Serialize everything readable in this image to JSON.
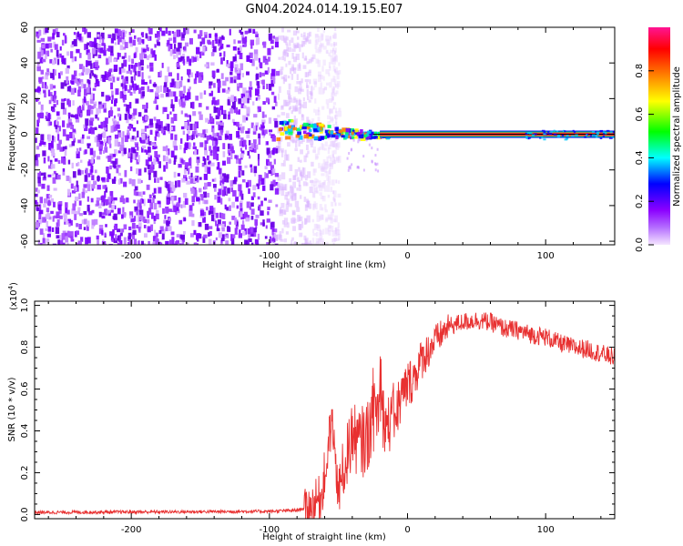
{
  "chart_data": [
    {
      "type": "heatmap",
      "title": "GN04.2024.014.19.15.E07",
      "xlabel": "Height of straight line (km)",
      "ylabel": "Frequency (Hz)",
      "xlim": [
        -270,
        150
      ],
      "ylim": [
        -62,
        60
      ],
      "x_ticks": [
        -200,
        -100,
        0,
        100
      ],
      "y_ticks": [
        -60,
        -40,
        -20,
        0,
        20,
        40,
        60
      ],
      "colorbar": {
        "label": "Normalized spectral amplitude",
        "ticks": [
          0.0,
          0.2,
          0.4,
          0.6,
          0.8
        ],
        "range": [
          0,
          1
        ],
        "colors": [
          "#f5e6ff",
          "#8b00ff",
          "#0000ff",
          "#00ffff",
          "#00ff00",
          "#ffff00",
          "#ff8000",
          "#ff0000",
          "#ff1493"
        ]
      },
      "noise_region_x": [
        -270,
        -70
      ],
      "signal_line_frequency": 0
    },
    {
      "type": "line",
      "xlabel": "Height of straight line (km)",
      "ylabel": "SNR (10 * v/v)",
      "y_multiplier": "(x10",
      "y_exponent": "4",
      "y_multiplier_close": ")",
      "xlim": [
        -270,
        150
      ],
      "ylim": [
        -0.02,
        1.02
      ],
      "x_ticks": [
        -200,
        -100,
        0,
        100
      ],
      "y_ticks": [
        0.0,
        0.2,
        0.4,
        0.6,
        0.8,
        1.0
      ],
      "grid": false,
      "series": [
        {
          "color": "#e83030",
          "x": [
            -270,
            -200,
            -100,
            -80,
            -70,
            -62,
            -58,
            -55,
            -50,
            -45,
            -40,
            -35,
            -30,
            -25,
            -20,
            -15,
            -10,
            -5,
            0,
            5,
            10,
            20,
            30,
            40,
            50,
            60,
            70,
            80,
            90,
            100,
            110,
            120,
            130,
            140,
            150
          ],
          "y": [
            0.01,
            0.012,
            0.015,
            0.02,
            0.04,
            0.09,
            0.3,
            0.45,
            0.12,
            0.25,
            0.38,
            0.34,
            0.36,
            0.46,
            0.52,
            0.42,
            0.46,
            0.55,
            0.62,
            0.66,
            0.74,
            0.83,
            0.9,
            0.92,
            0.93,
            0.92,
            0.89,
            0.88,
            0.86,
            0.85,
            0.82,
            0.8,
            0.79,
            0.77,
            0.75
          ]
        }
      ]
    }
  ]
}
